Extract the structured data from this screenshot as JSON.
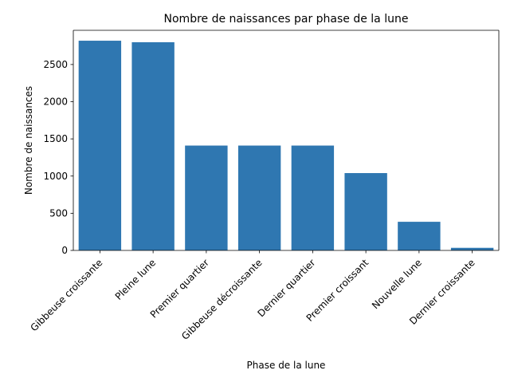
{
  "chart_data": {
    "type": "bar",
    "title": "Nombre de naissances par phase de la lune",
    "xlabel": "Phase de la lune",
    "ylabel": "Nombre de naissances",
    "categories": [
      "Gibbeuse croissante",
      "Pleine lune",
      "Premier quartier",
      "Gibbeuse décroissante",
      "Dernier quartier",
      "Premier croissant",
      "Nouvelle lune",
      "Dernier croissante"
    ],
    "values": [
      2820,
      2800,
      1410,
      1410,
      1410,
      1040,
      385,
      35
    ],
    "ylim": [
      0,
      2960
    ],
    "yticks": [
      0,
      500,
      1000,
      1500,
      2000,
      2500
    ],
    "grid": false,
    "bar_color": "#2f77b1"
  }
}
